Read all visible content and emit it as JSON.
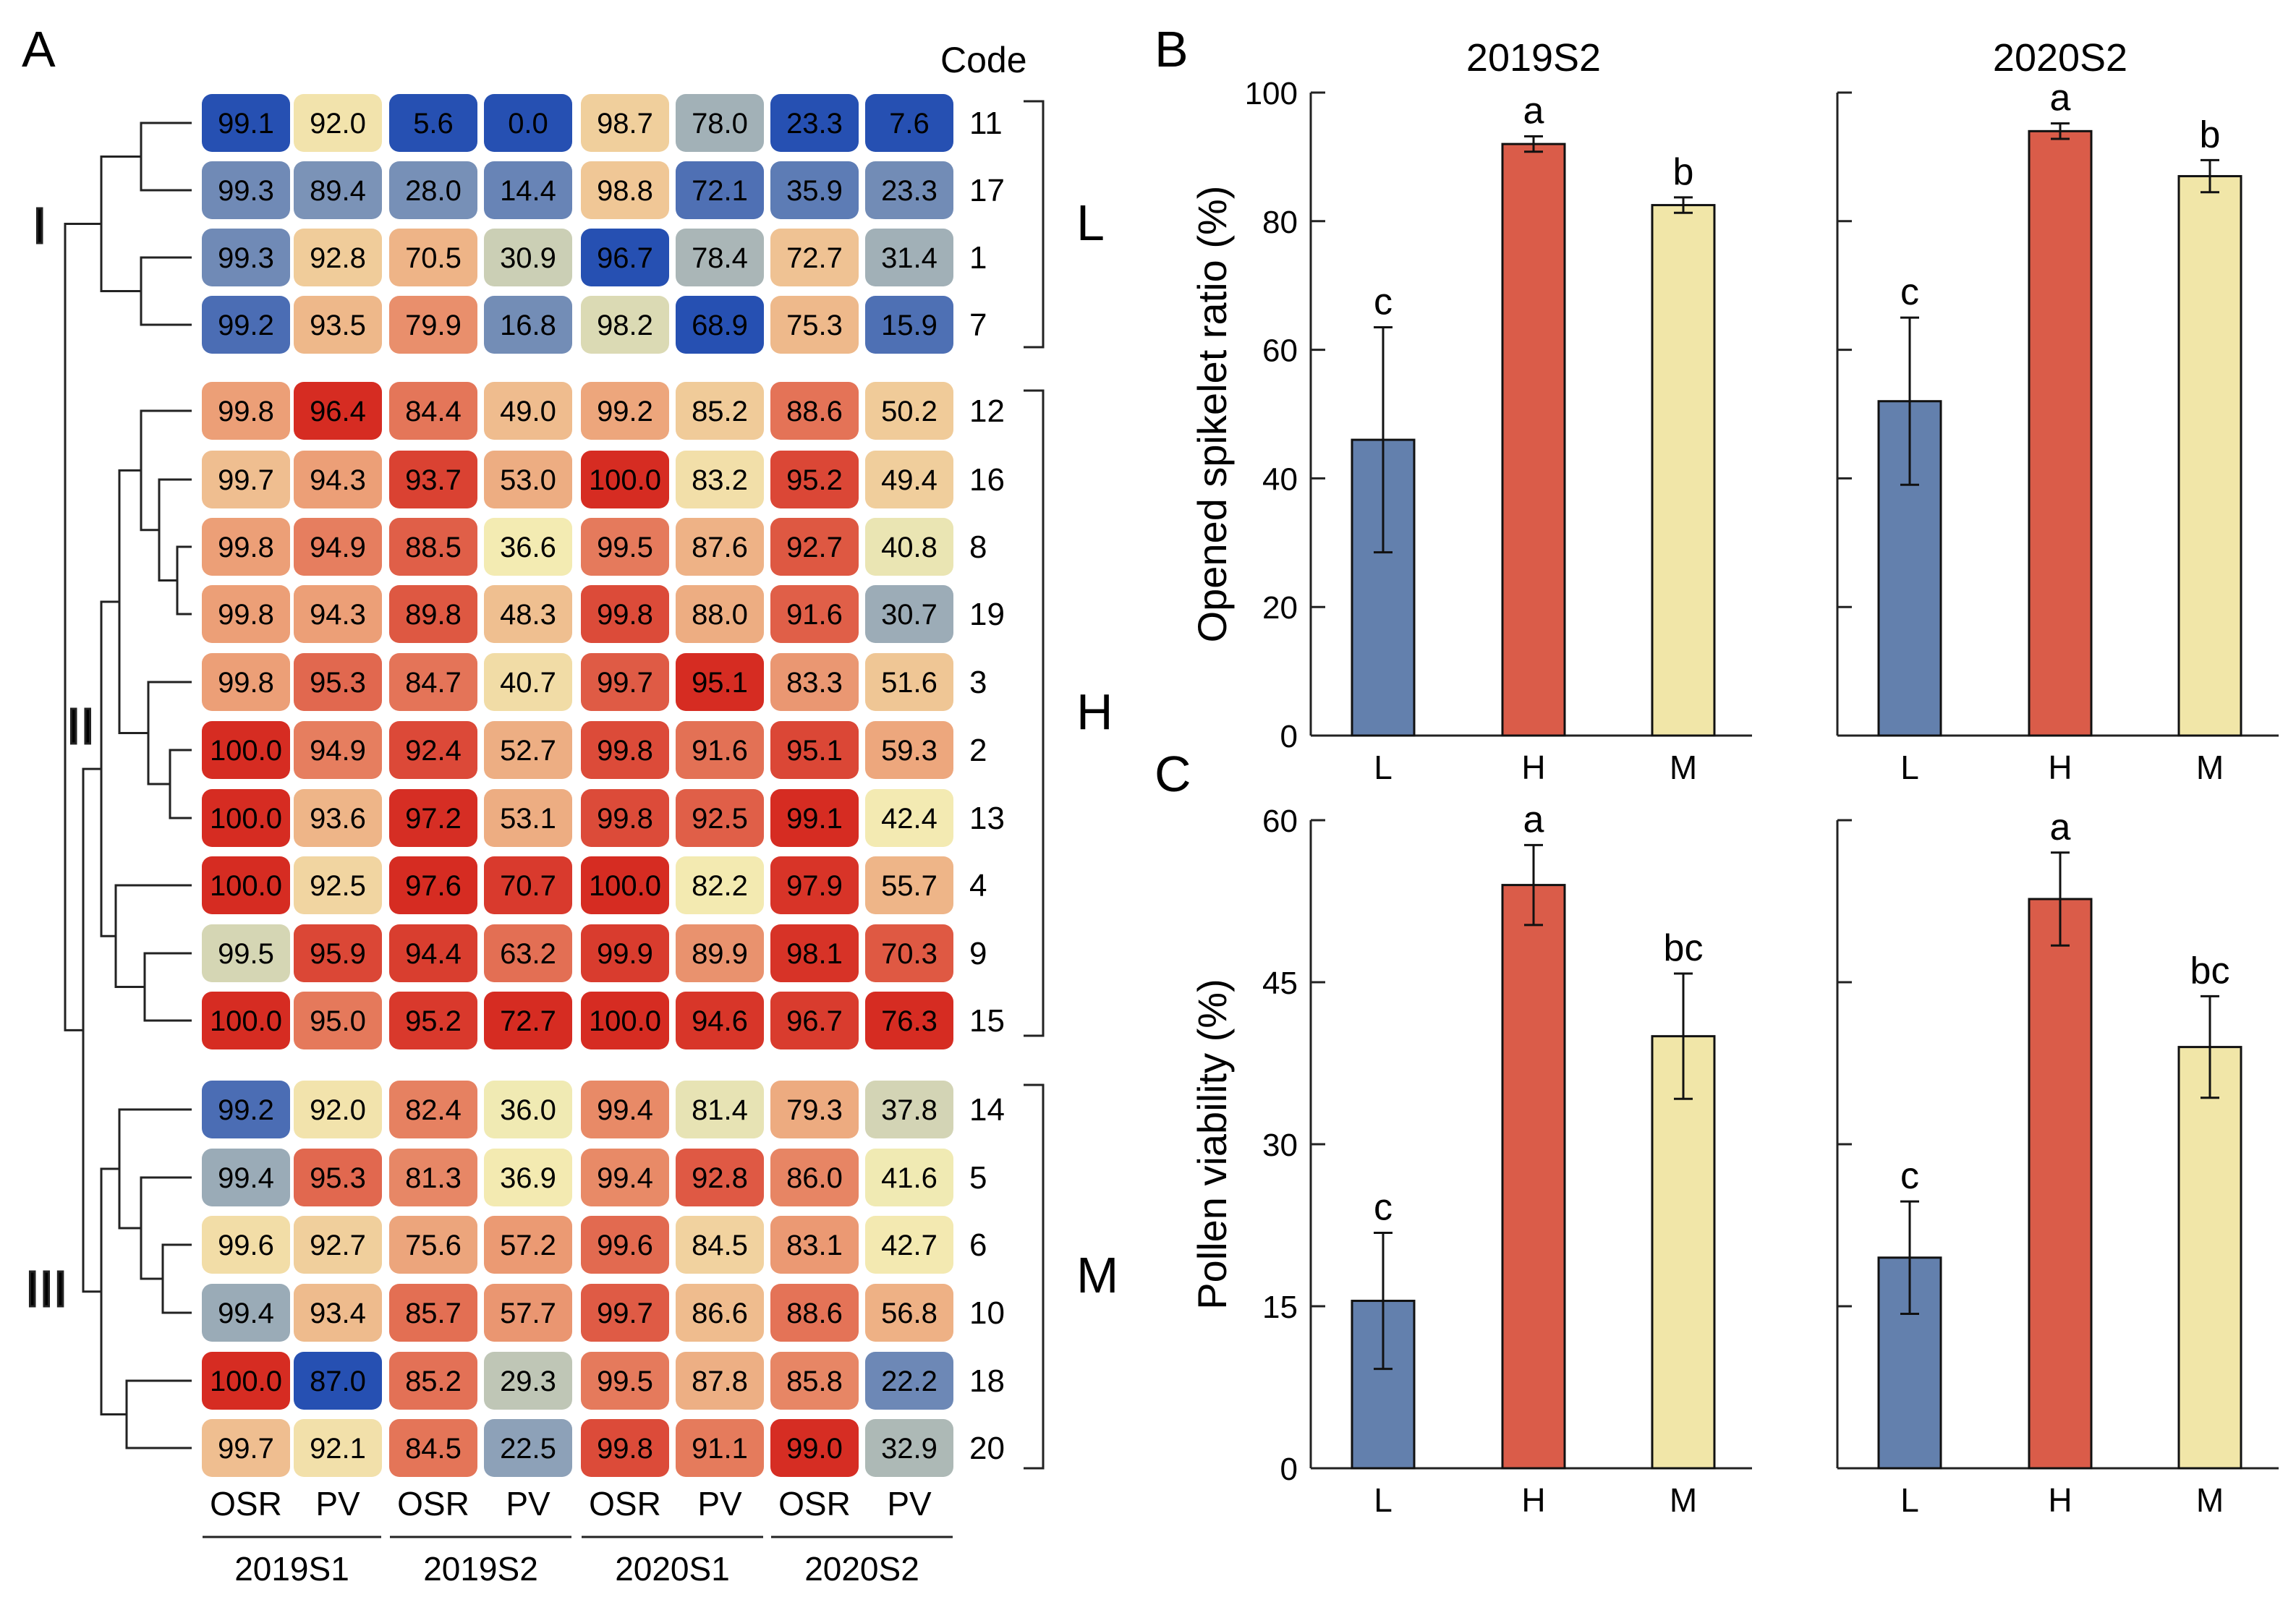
{
  "chart_data": [
    {
      "type": "heatmap",
      "panel_label": "A",
      "code_header": "Code",
      "columns": [
        "OSR",
        "PV",
        "OSR",
        "PV",
        "OSR",
        "PV",
        "OSR",
        "PV"
      ],
      "column_groups": [
        "2019S1",
        "2019S2",
        "2020S1",
        "2020S2"
      ],
      "clusters": [
        {
          "roman": "I",
          "letter": "L",
          "rows": [
            {
              "code": "11",
              "values": [
                99.1,
                92.0,
                5.6,
                0.0,
                98.7,
                78.0,
                23.3,
                7.6
              ]
            },
            {
              "code": "17",
              "values": [
                99.3,
                89.4,
                28.0,
                14.4,
                98.8,
                72.1,
                35.9,
                23.3
              ]
            },
            {
              "code": "1",
              "values": [
                99.3,
                92.8,
                70.5,
                30.9,
                96.7,
                78.4,
                72.7,
                31.4
              ]
            },
            {
              "code": "7",
              "values": [
                99.2,
                93.5,
                79.9,
                16.8,
                98.2,
                68.9,
                75.3,
                15.9
              ]
            }
          ]
        },
        {
          "roman": "II",
          "letter": "H",
          "rows": [
            {
              "code": "12",
              "values": [
                99.8,
                96.4,
                84.4,
                49.0,
                99.2,
                85.2,
                88.6,
                50.2
              ]
            },
            {
              "code": "16",
              "values": [
                99.7,
                94.3,
                93.7,
                53.0,
                100.0,
                83.2,
                95.2,
                49.4
              ]
            },
            {
              "code": "8",
              "values": [
                99.8,
                94.9,
                88.5,
                36.6,
                99.5,
                87.6,
                92.7,
                40.8
              ]
            },
            {
              "code": "19",
              "values": [
                99.8,
                94.3,
                89.8,
                48.3,
                99.8,
                88.0,
                91.6,
                30.7
              ]
            },
            {
              "code": "3",
              "values": [
                99.8,
                95.3,
                84.7,
                40.7,
                99.7,
                95.1,
                83.3,
                51.6
              ]
            },
            {
              "code": "2",
              "values": [
                100.0,
                94.9,
                92.4,
                52.7,
                99.8,
                91.6,
                95.1,
                59.3
              ]
            },
            {
              "code": "13",
              "values": [
                100.0,
                93.6,
                97.2,
                53.1,
                99.8,
                92.5,
                99.1,
                42.4
              ]
            },
            {
              "code": "4",
              "values": [
                100.0,
                92.5,
                97.6,
                70.7,
                100.0,
                82.2,
                97.9,
                55.7
              ]
            },
            {
              "code": "9",
              "values": [
                99.5,
                95.9,
                94.4,
                63.2,
                99.9,
                89.9,
                98.1,
                70.3
              ]
            },
            {
              "code": "15",
              "values": [
                100.0,
                95.0,
                95.2,
                72.7,
                100.0,
                94.6,
                96.7,
                76.3
              ]
            }
          ]
        },
        {
          "roman": "III",
          "letter": "M",
          "rows": [
            {
              "code": "14",
              "values": [
                99.2,
                92.0,
                82.4,
                36.0,
                99.4,
                81.4,
                79.3,
                37.8
              ]
            },
            {
              "code": "5",
              "values": [
                99.4,
                95.3,
                81.3,
                36.9,
                99.4,
                92.8,
                86.0,
                41.6
              ]
            },
            {
              "code": "6",
              "values": [
                99.6,
                92.7,
                75.6,
                57.2,
                99.6,
                84.5,
                83.1,
                42.7
              ]
            },
            {
              "code": "10",
              "values": [
                99.4,
                93.4,
                85.7,
                57.7,
                99.7,
                86.6,
                88.6,
                56.8
              ]
            },
            {
              "code": "18",
              "values": [
                100.0,
                87.0,
                85.2,
                29.3,
                99.5,
                87.8,
                85.8,
                22.2
              ]
            },
            {
              "code": "20",
              "values": [
                99.7,
                92.1,
                84.5,
                22.5,
                99.8,
                91.1,
                99.0,
                32.9
              ]
            }
          ]
        }
      ]
    },
    {
      "type": "bar",
      "panel_label": "B",
      "ylabel": "Opened spikelet ratio (%)",
      "ylim": [
        0,
        100
      ],
      "yticks": [
        0,
        20,
        40,
        60,
        80,
        100
      ],
      "categories": [
        "L",
        "H",
        "M"
      ],
      "subplots": [
        {
          "title": "2019S2",
          "values": [
            46.0,
            92.0,
            82.5
          ],
          "errors": [
            17.5,
            1.2,
            1.2
          ],
          "letters": [
            "c",
            "a",
            "b"
          ]
        },
        {
          "title": "2020S2",
          "values": [
            52.0,
            94.0,
            87.0
          ],
          "errors": [
            13.0,
            1.2,
            2.5
          ],
          "letters": [
            "c",
            "a",
            "b"
          ]
        }
      ]
    },
    {
      "type": "bar",
      "panel_label": "C",
      "ylabel": "Pollen viability (%)",
      "ylim": [
        0,
        60
      ],
      "yticks": [
        0,
        15,
        30,
        45,
        60
      ],
      "categories": [
        "L",
        "H",
        "M"
      ],
      "subplots": [
        {
          "title": "",
          "values": [
            15.5,
            54.0,
            40.0
          ],
          "errors": [
            6.3,
            3.7,
            5.8
          ],
          "letters": [
            "c",
            "a",
            "bc"
          ]
        },
        {
          "title": "",
          "values": [
            19.5,
            52.7,
            39.0
          ],
          "errors": [
            5.2,
            4.3,
            4.7
          ],
          "letters": [
            "c",
            "a",
            "bc"
          ]
        }
      ]
    }
  ],
  "colors": {
    "low_blue": "#2650b2",
    "light_yellow": "#f3ecb3",
    "high_red": "#d62c22",
    "bar_L": "#6380ad",
    "bar_H": "#da5c49",
    "bar_M": "#f1e6a8"
  }
}
